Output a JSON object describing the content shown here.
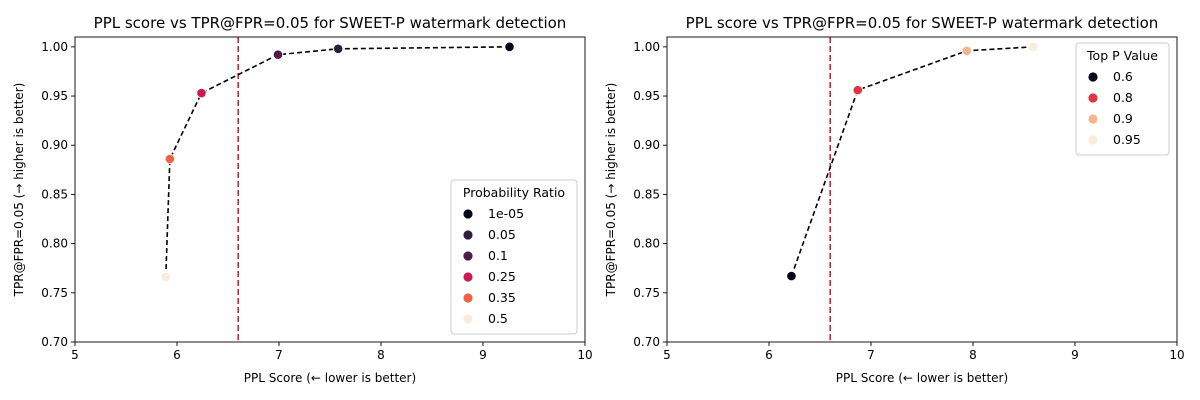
{
  "chart_data": [
    {
      "type": "scatter",
      "title": "PPL score vs TPR@FPR=0.05 for SWEET-P watermark detection",
      "xlabel": "PPL Score (← lower is better)",
      "ylabel": "TPR@FPR=0.05 (→ higher is better)",
      "xlim": [
        5,
        10
      ],
      "ylim": [
        0.7,
        1.01
      ],
      "xticks": [
        "5",
        "6",
        "7",
        "8",
        "9",
        "10"
      ],
      "yticks": [
        "0.70",
        "0.75",
        "0.80",
        "0.85",
        "0.90",
        "0.95",
        "1.00"
      ],
      "grid": false,
      "threshold_x": 6.6,
      "threshold_color": "#d62728",
      "legend": {
        "title": "Probability Ratio",
        "position": "lower-right",
        "entries": [
          {
            "label": "1e-05",
            "color": "#03051a"
          },
          {
            "label": "0.05",
            "color": "#2e1e3b"
          },
          {
            "label": "0.1",
            "color": "#4c1d4b"
          },
          {
            "label": "0.25",
            "color": "#cb1b4f"
          },
          {
            "label": "0.35",
            "color": "#f06043"
          },
          {
            "label": "0.5",
            "color": "#faebdd"
          }
        ]
      },
      "points": [
        {
          "x": 5.89,
          "y": 0.766,
          "series": "0.5"
        },
        {
          "x": 5.93,
          "y": 0.886,
          "series": "0.35"
        },
        {
          "x": 6.24,
          "y": 0.953,
          "series": "0.25"
        },
        {
          "x": 6.99,
          "y": 0.992,
          "series": "0.1"
        },
        {
          "x": 7.58,
          "y": 0.998,
          "series": "0.05"
        },
        {
          "x": 9.26,
          "y": 1.0,
          "series": "1e-05"
        }
      ]
    },
    {
      "type": "scatter",
      "title": "PPL score vs TPR@FPR=0.05 for SWEET-P watermark detection",
      "xlabel": "PPL Score (← lower is better)",
      "ylabel": "TPR@FPR=0.05 (→ higher is better)",
      "xlim": [
        5,
        10
      ],
      "ylim": [
        0.7,
        1.01
      ],
      "xticks": [
        "5",
        "6",
        "7",
        "8",
        "9",
        "10"
      ],
      "yticks": [
        "0.70",
        "0.75",
        "0.80",
        "0.85",
        "0.90",
        "0.95",
        "1.00"
      ],
      "grid": false,
      "threshold_x": 6.6,
      "threshold_color": "#d62728",
      "legend": {
        "title": "Top P Value",
        "position": "top-right",
        "entries": [
          {
            "label": "0.6",
            "color": "#03051a"
          },
          {
            "label": "0.8",
            "color": "#e13342"
          },
          {
            "label": "0.9",
            "color": "#f6b48f"
          },
          {
            "label": "0.95",
            "color": "#faebdd"
          }
        ]
      },
      "points": [
        {
          "x": 6.22,
          "y": 0.767,
          "series": "0.6"
        },
        {
          "x": 6.87,
          "y": 0.956,
          "series": "0.8"
        },
        {
          "x": 7.94,
          "y": 0.996,
          "series": "0.9"
        },
        {
          "x": 8.59,
          "y": 1.0,
          "series": "0.95"
        }
      ]
    }
  ]
}
